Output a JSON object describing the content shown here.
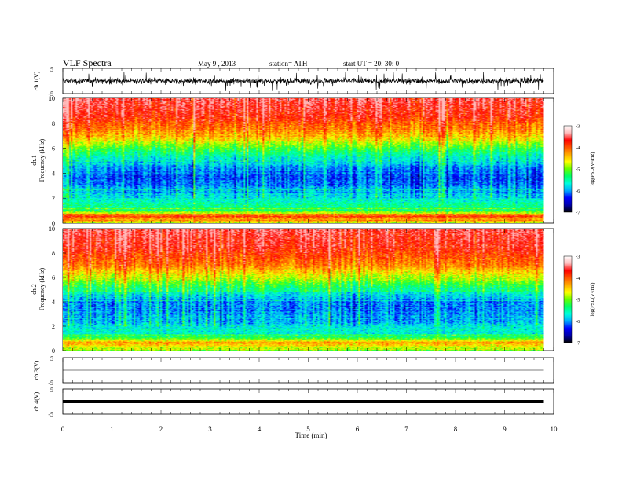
{
  "header": {
    "title": "VLF  Spectra",
    "date": "May 9  , 2013",
    "station": "station= ATH",
    "start": "start  UT  =   20: 30: 0"
  },
  "colors": {
    "spectrum_scale": [
      "#000000",
      "#0000aa",
      "#0000ff",
      "#00aaff",
      "#00ffdd",
      "#00ff66",
      "#66ff00",
      "#ffff00",
      "#ffaa00",
      "#ff5500",
      "#ff0000",
      "#ffbbbb",
      "#ffffff"
    ]
  },
  "chart_data": [
    {
      "type": "line",
      "panel": "ch1-waveform",
      "ylabel": "ch.1(V)",
      "ylim": [
        -5,
        5
      ],
      "yticks": [
        "5",
        "-5"
      ],
      "xlim": [
        0,
        10
      ],
      "description_level": "signal fluctuating around ~0 V with amplitude about ±2 V, spikes to ±3 V"
    },
    {
      "type": "heatmap",
      "panel": "ch1-spectrogram",
      "ylabel": "ch.1\nFrequency  (kHz)",
      "ylabel_lines": [
        "ch.1",
        "Frequency  (kHz)"
      ],
      "ylim": [
        0,
        10
      ],
      "yticks": [
        "10",
        "8",
        "6",
        "4",
        "2",
        "0"
      ],
      "xlim": [
        0,
        10
      ],
      "data_extent_min": 9.8,
      "colorbar": {
        "label": "log(PSD(V²/Hz)",
        "ticks": [
          "-3",
          "-4",
          "-5",
          "-6",
          "-7"
        ],
        "range": [
          -7,
          -3
        ]
      },
      "level_profile": [
        {
          "freq_khz": 0.0,
          "log_psd": -4.6
        },
        {
          "freq_khz": 0.5,
          "log_psd": -3.6
        },
        {
          "freq_khz": 1.0,
          "log_psd": -5.2
        },
        {
          "freq_khz": 2.0,
          "log_psd": -5.6
        },
        {
          "freq_khz": 3.5,
          "log_psd": -6.2
        },
        {
          "freq_khz": 5.0,
          "log_psd": -5.7
        },
        {
          "freq_khz": 6.0,
          "log_psd": -5.0
        },
        {
          "freq_khz": 7.0,
          "log_psd": -4.2
        },
        {
          "freq_khz": 8.5,
          "log_psd": -3.5
        },
        {
          "freq_khz": 10.0,
          "log_psd": -3.2
        }
      ]
    },
    {
      "type": "heatmap",
      "panel": "ch2-spectrogram",
      "ylabel": "ch.2\nFrequency  (kHz)",
      "ylabel_lines": [
        "ch.2",
        "Frequency  (kHz)"
      ],
      "ylim": [
        0,
        10
      ],
      "yticks": [
        "10",
        "8",
        "6",
        "4",
        "2",
        "0"
      ],
      "xlim": [
        0,
        10
      ],
      "data_extent_min": 9.8,
      "colorbar": {
        "label": "log(PSD(V²/Hz)",
        "ticks": [
          "-3",
          "-4",
          "-5",
          "-6",
          "-7"
        ],
        "range": [
          -7,
          -3
        ]
      },
      "level_profile": [
        {
          "freq_khz": 0.0,
          "log_psd": -4.8
        },
        {
          "freq_khz": 0.6,
          "log_psd": -4.0
        },
        {
          "freq_khz": 1.2,
          "log_psd": -5.4
        },
        {
          "freq_khz": 2.5,
          "log_psd": -5.8
        },
        {
          "freq_khz": 4.0,
          "log_psd": -6.0
        },
        {
          "freq_khz": 5.0,
          "log_psd": -5.3
        },
        {
          "freq_khz": 6.0,
          "log_psd": -4.6
        },
        {
          "freq_khz": 7.0,
          "log_psd": -3.9
        },
        {
          "freq_khz": 8.5,
          "log_psd": -3.4
        },
        {
          "freq_khz": 10.0,
          "log_psd": -3.2
        }
      ]
    },
    {
      "type": "line",
      "panel": "ch3-waveform",
      "ylabel": "ch.3(V)",
      "ylim": [
        -5,
        5
      ],
      "yticks": [
        "5",
        "-5"
      ],
      "xlim": [
        0,
        10
      ],
      "level_v": 0.0
    },
    {
      "type": "line",
      "panel": "ch4-waveform",
      "ylabel": "ch.4(V)",
      "ylim": [
        -5,
        5
      ],
      "yticks": [
        "5",
        "-5"
      ],
      "xlim": [
        0,
        10
      ],
      "level_v": 0.0
    }
  ],
  "xaxis": {
    "label": "Time  (min)",
    "ticks": [
      "0",
      "1",
      "2",
      "3",
      "4",
      "5",
      "6",
      "7",
      "8",
      "9",
      "10"
    ]
  }
}
